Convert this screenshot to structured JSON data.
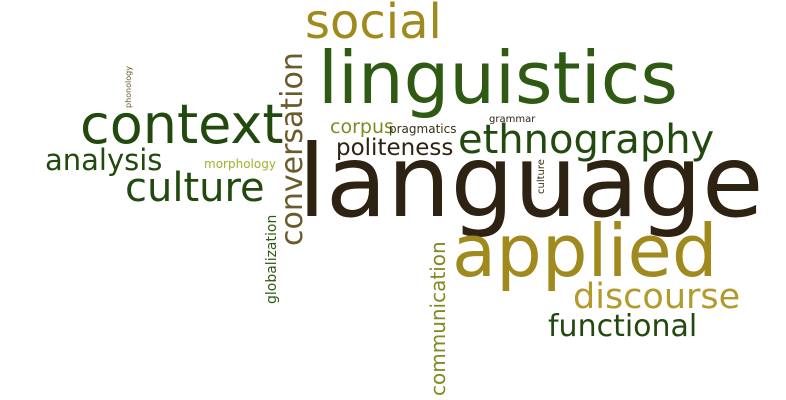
{
  "colors": {
    "dark_brown": "#2e2212",
    "dark_green": "#224a0e",
    "mid_green": "#2f5a14",
    "olive": "#a08a1e",
    "light_olive": "#b29a2c",
    "olive_green": "#7f8a22",
    "lime": "#9ab52a",
    "brown_mid": "#6b5a2a"
  },
  "words": {
    "social": "social",
    "linguistics": "linguistics",
    "context": "context",
    "analysis": "analysis",
    "culture": "culture",
    "conversation": "conversation",
    "corpus": "corpus",
    "pragmatics": "pragmatics",
    "grammar": "grammar",
    "ethnography": "ethnography",
    "politeness": "politeness",
    "morphology": "morphology",
    "phonology": "phonology",
    "language": "language",
    "culture_small": "culture",
    "applied": "applied",
    "discourse": "discourse",
    "functional": "functional",
    "communication": "communication",
    "globalization": "globalization"
  }
}
